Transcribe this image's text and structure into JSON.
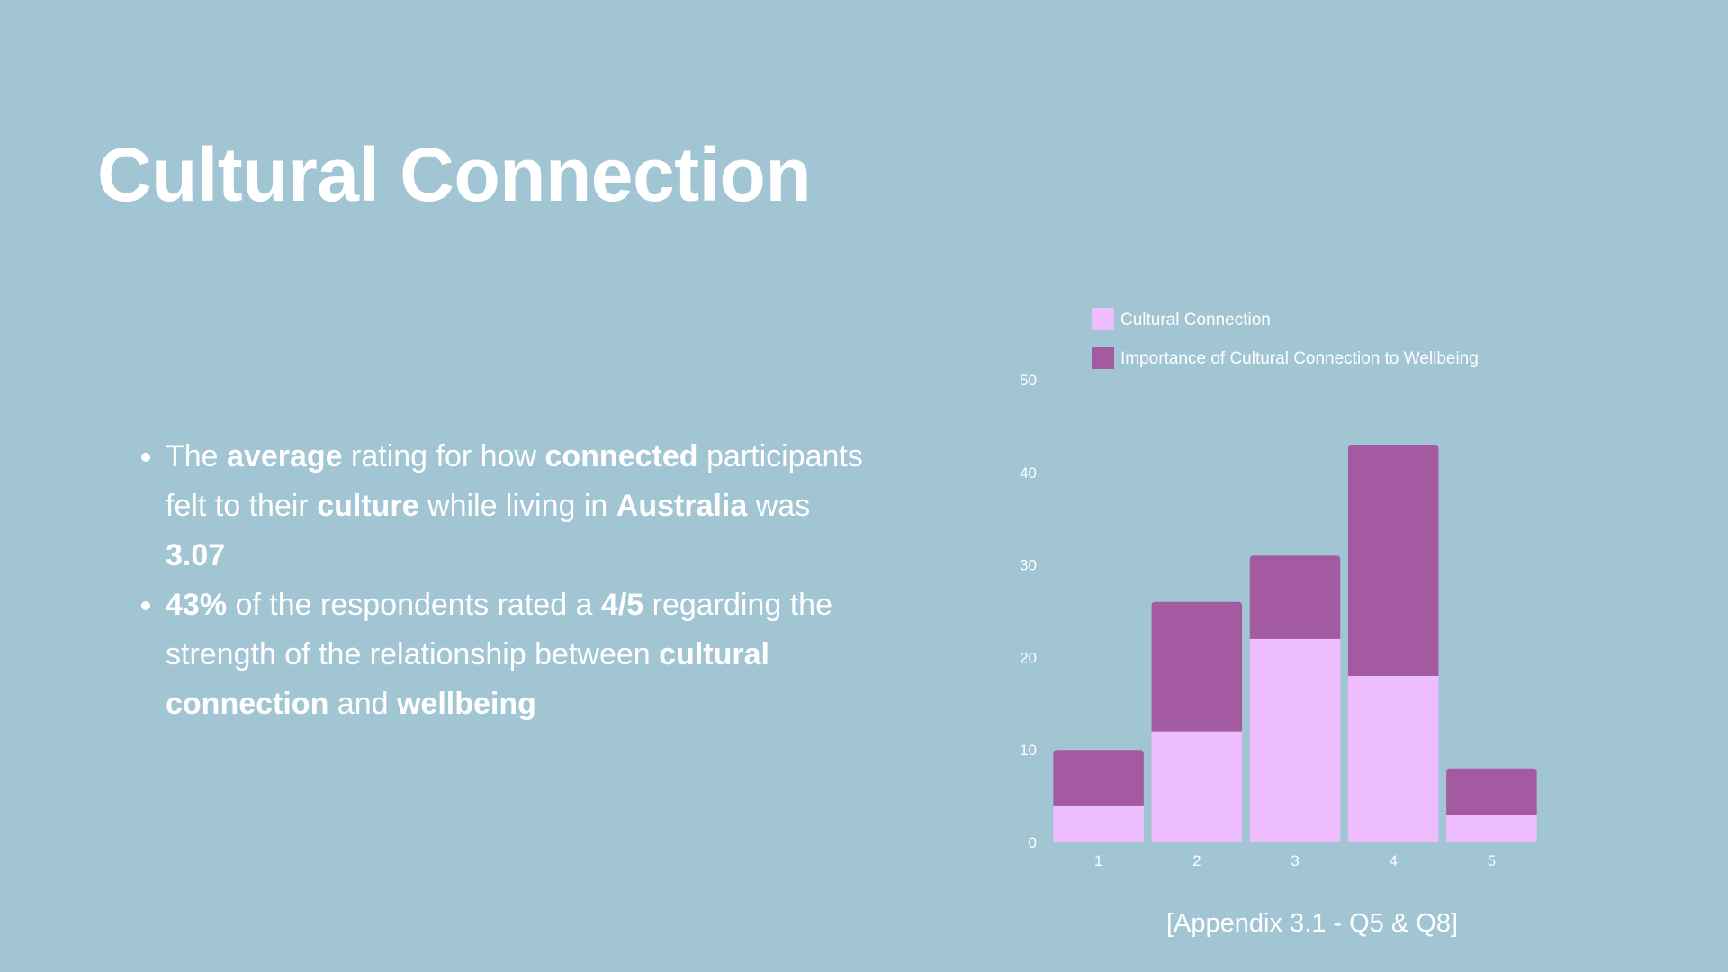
{
  "slide": {
    "title": "Cultural Connection",
    "bullets": [
      [
        {
          "t": "The ",
          "b": false
        },
        {
          "t": "average",
          "b": true
        },
        {
          "t": " rating for how ",
          "b": false
        },
        {
          "t": "connected",
          "b": true
        },
        {
          "t": " participants felt to their ",
          "b": false
        },
        {
          "t": "culture",
          "b": true
        },
        {
          "t": " while living in ",
          "b": false
        },
        {
          "t": "Australia",
          "b": true
        },
        {
          "t": " was ",
          "b": false
        },
        {
          "t": "3.07",
          "b": true
        }
      ],
      [
        {
          "t": "43%",
          "b": true
        },
        {
          "t": " of the respondents rated a ",
          "b": false
        },
        {
          "t": "4/5",
          "b": true
        },
        {
          "t": " regarding the strength of the relationship between ",
          "b": false
        },
        {
          "t": "cultural connection",
          "b": true
        },
        {
          "t": " and ",
          "b": false
        },
        {
          "t": "wellbeing",
          "b": true
        }
      ]
    ],
    "appendix": "[Appendix 3.1 - Q5 & Q8]"
  },
  "chart_data": {
    "type": "bar",
    "stacked": true,
    "categories": [
      "1",
      "2",
      "3",
      "4",
      "5"
    ],
    "series": [
      {
        "name": "Cultural Connection",
        "values": [
          4,
          12,
          22,
          18,
          3
        ],
        "color": "#eebdfd"
      },
      {
        "name": "Importance of Cultural Connection to Wellbeing",
        "values": [
          6,
          14,
          9,
          25,
          5
        ],
        "color": "#a45aa0"
      }
    ],
    "yticks": [
      0,
      10,
      20,
      30,
      40,
      50
    ],
    "ylim": [
      0,
      50
    ],
    "grid": false,
    "legend_position": "top"
  }
}
